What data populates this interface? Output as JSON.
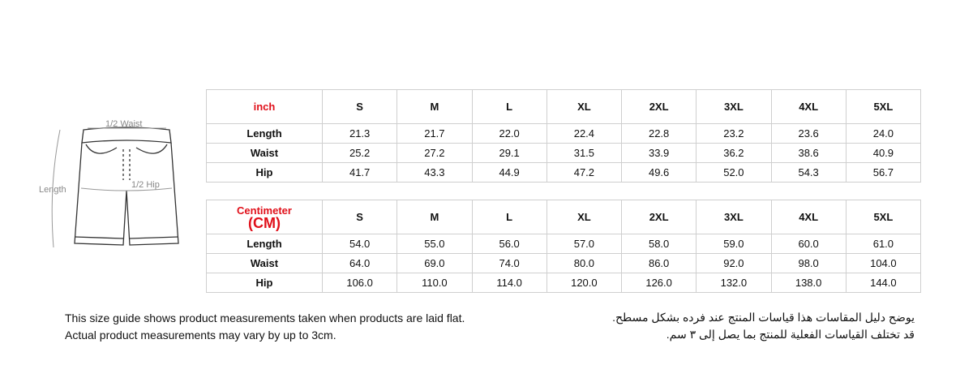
{
  "diagram": {
    "waist_label": "1/2 Waist",
    "hip_label": "1/2 Hip",
    "length_label": "Length"
  },
  "tables": [
    {
      "unit": [
        "inch"
      ],
      "sizes": [
        "S",
        "M",
        "L",
        "XL",
        "2XL",
        "3XL",
        "4XL",
        "5XL"
      ],
      "rows": [
        {
          "label": "Length",
          "values": [
            "21.3",
            "21.7",
            "22.0",
            "22.4",
            "22.8",
            "23.2",
            "23.6",
            "24.0"
          ]
        },
        {
          "label": "Waist",
          "values": [
            "25.2",
            "27.2",
            "29.1",
            "31.5",
            "33.9",
            "36.2",
            "38.6",
            "40.9"
          ]
        },
        {
          "label": "Hip",
          "values": [
            "41.7",
            "43.3",
            "44.9",
            "47.2",
            "49.6",
            "52.0",
            "54.3",
            "56.7"
          ]
        }
      ]
    },
    {
      "unit": [
        "Centimeter",
        "(CM)"
      ],
      "sizes": [
        "S",
        "M",
        "L",
        "XL",
        "2XL",
        "3XL",
        "4XL",
        "5XL"
      ],
      "rows": [
        {
          "label": "Length",
          "values": [
            "54.0",
            "55.0",
            "56.0",
            "57.0",
            "58.0",
            "59.0",
            "60.0",
            "61.0"
          ]
        },
        {
          "label": "Waist",
          "values": [
            "64.0",
            "69.0",
            "74.0",
            "80.0",
            "86.0",
            "92.0",
            "98.0",
            "104.0"
          ]
        },
        {
          "label": "Hip",
          "values": [
            "106.0",
            "110.0",
            "114.0",
            "120.0",
            "126.0",
            "132.0",
            "138.0",
            "144.0"
          ]
        }
      ]
    }
  ],
  "notes": {
    "english": [
      "This size guide shows product measurements taken when products are laid flat.",
      "Actual product measurements may vary by up to 3cm."
    ],
    "arabic": [
      "يوضح دليل المقاسات هذا قياسات المنتج عند فرده بشكل مسطح.",
      "قد تختلف القياسات الفعلية للمنتج بما يصل إلى ٣ سم."
    ]
  }
}
